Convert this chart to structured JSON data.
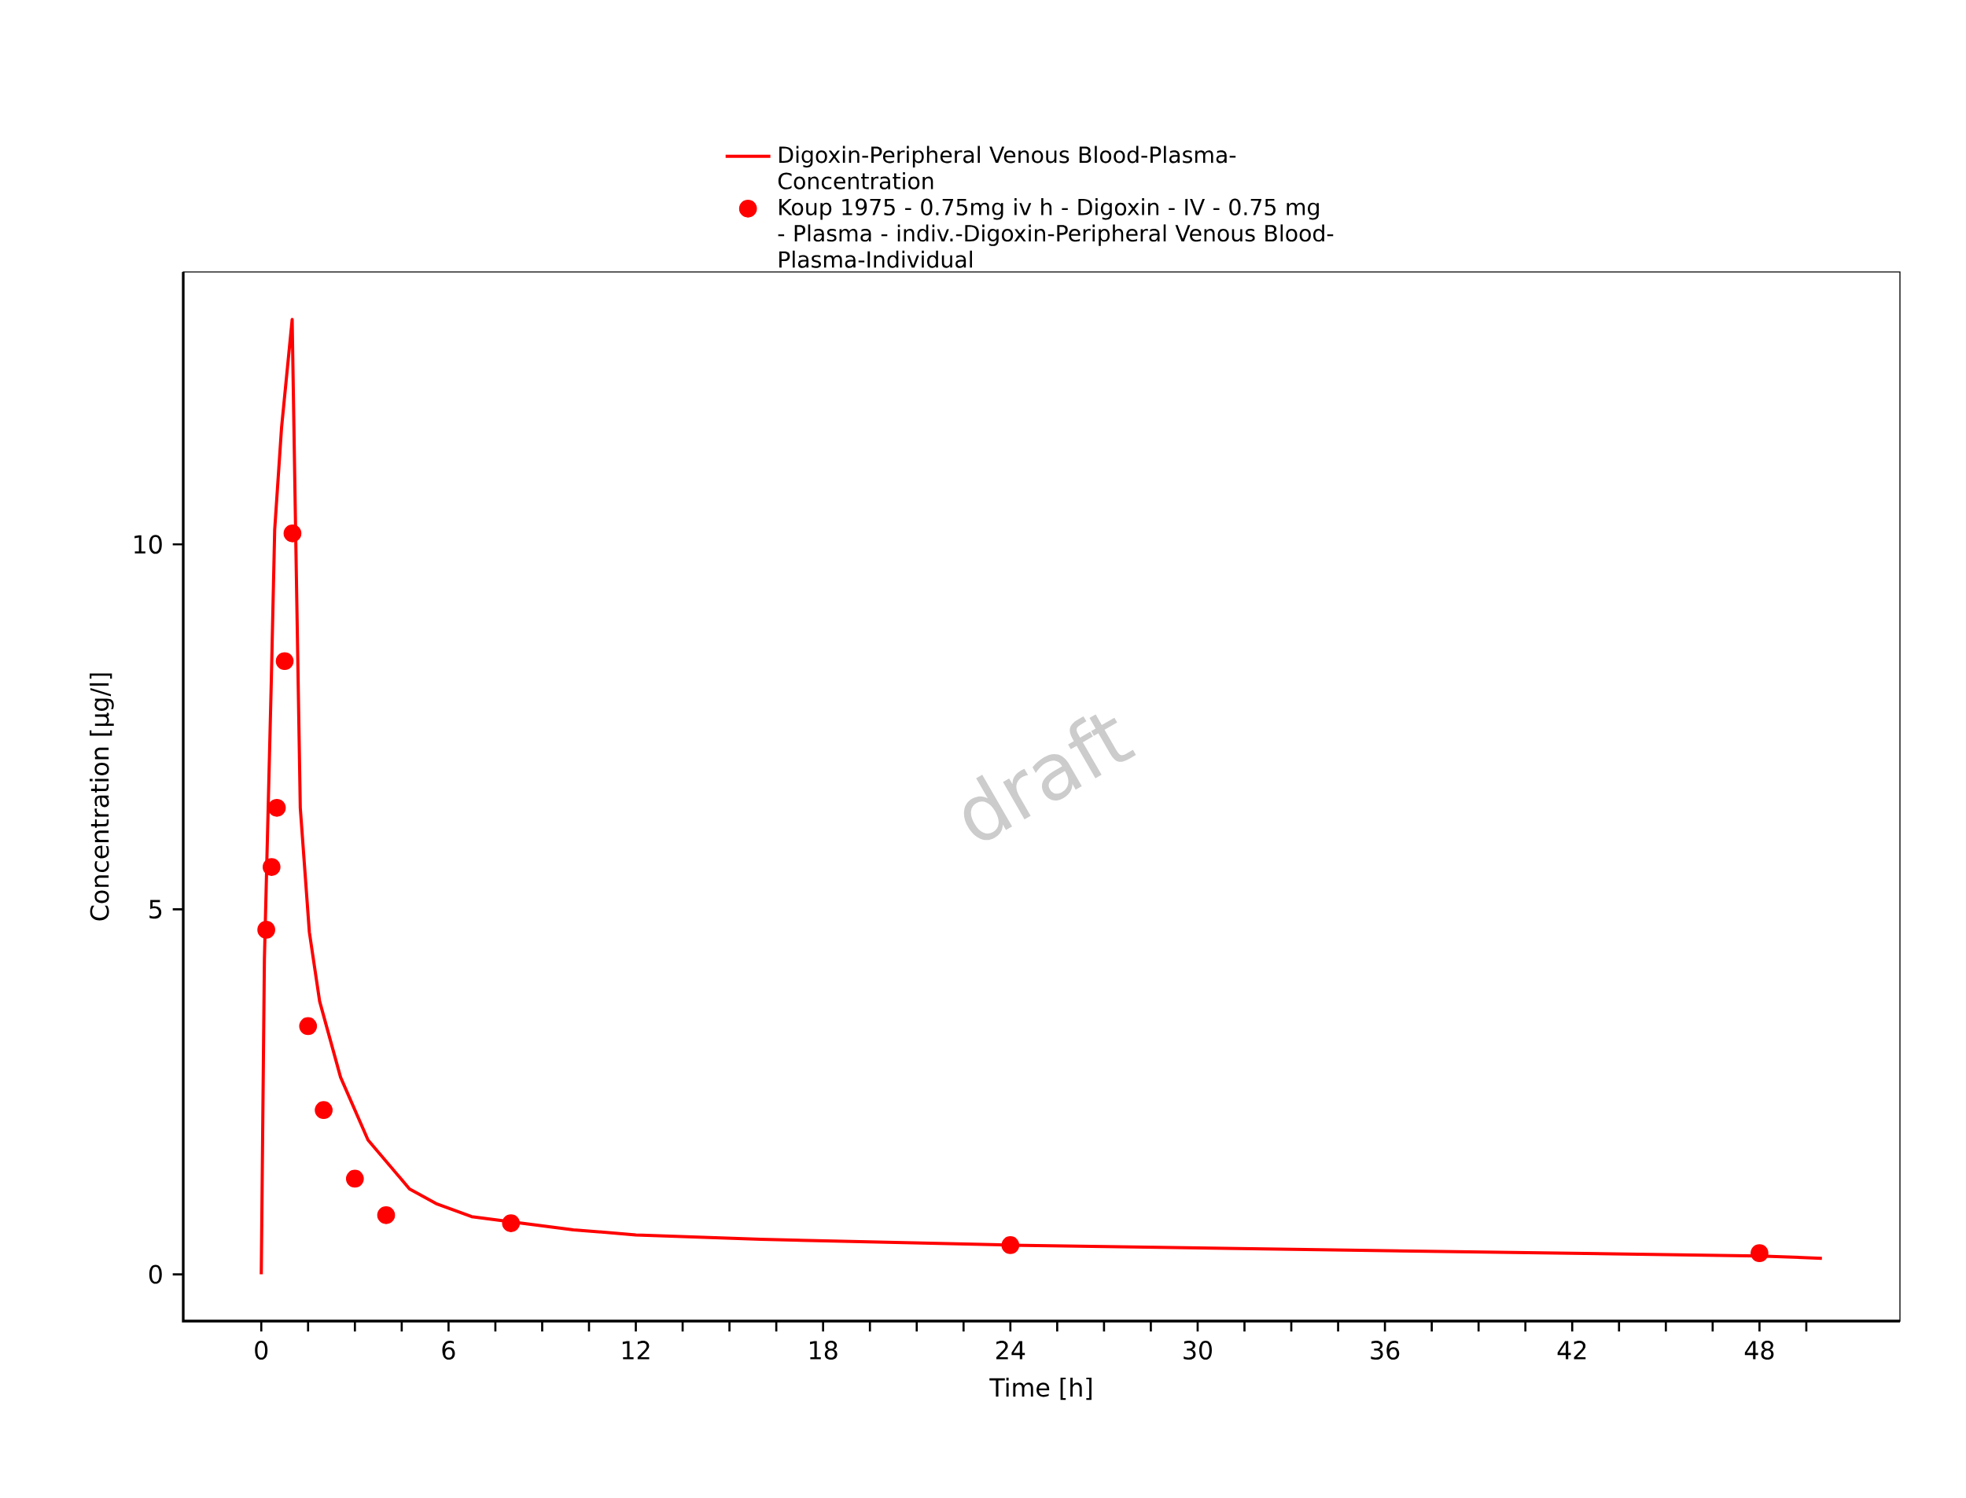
{
  "chart_data": {
    "type": "line",
    "xlabel": "Time [h]",
    "ylabel": "Concentration [µg/l]",
    "xlim": [
      -2.5,
      52.5
    ],
    "ylim": [
      -0.64,
      13.73
    ],
    "xticks": [
      0,
      {
        "value": 1.5,
        "label": null
      },
      {
        "value": 3,
        "label": null
      },
      {
        "value": 4.5,
        "label": null
      },
      6,
      {
        "value": 7.5,
        "label": null
      },
      {
        "value": 9,
        "label": null
      },
      {
        "value": 10.5,
        "label": null
      },
      12,
      {
        "value": 13.5,
        "label": null
      },
      {
        "value": 15,
        "label": null
      },
      {
        "value": 16.5,
        "label": null
      },
      18,
      {
        "value": 19.5,
        "label": null
      },
      {
        "value": 21,
        "label": null
      },
      {
        "value": 22.5,
        "label": null
      },
      24,
      {
        "value": 25.5,
        "label": null
      },
      {
        "value": 27,
        "label": null
      },
      {
        "value": 28.5,
        "label": null
      },
      30,
      {
        "value": 31.5,
        "label": null
      },
      {
        "value": 33,
        "label": null
      },
      {
        "value": 34.5,
        "label": null
      },
      36,
      {
        "value": 37.5,
        "label": null
      },
      {
        "value": 39,
        "label": null
      },
      {
        "value": 40.5,
        "label": null
      },
      42,
      {
        "value": 43.5,
        "label": null
      },
      {
        "value": 45,
        "label": null
      },
      {
        "value": 46.5,
        "label": null
      },
      48,
      {
        "value": 49.5,
        "label": null
      }
    ],
    "yticks": [
      0,
      5,
      10
    ],
    "grid": false,
    "legend": "top",
    "annotations": [
      "draft"
    ],
    "series": [
      {
        "name": "Digoxin-Peripheral Venous Blood-Plasma-Concentration",
        "color": "#ff0000",
        "marker": "none",
        "line_style": "solid",
        "x": [
          0,
          0.1,
          0.21,
          0.32,
          0.43,
          0.65,
          0.99,
          1.1,
          1.25,
          1.54,
          1.87,
          2.54,
          3.42,
          4.75,
          5.6,
          6.74,
          8,
          10,
          12,
          16,
          24,
          48,
          50
        ],
        "values": [
          0,
          4.31,
          6.2,
          8.1,
          10.2,
          11.6,
          13.08,
          10.2,
          6.39,
          4.69,
          3.74,
          2.7,
          1.84,
          1.17,
          0.97,
          0.79,
          0.72,
          0.61,
          0.54,
          0.48,
          0.4,
          0.25,
          0.22
        ]
      },
      {
        "name": "Koup 1975 - 0.75mg iv h - Digoxin - IV - 0.75 mg - Plasma - indiv.-Digoxin-Peripheral Venous Blood-Plasma-Individual",
        "type": "scatter",
        "color": "#ff0000",
        "marker": "circle",
        "x": [
          0.16,
          0.33,
          0.5,
          0.75,
          1.0,
          1.5,
          2,
          3,
          4,
          8,
          24,
          48
        ],
        "values": [
          4.72,
          5.58,
          6.39,
          8.4,
          10.15,
          3.4,
          2.25,
          1.31,
          0.81,
          0.7,
          0.4,
          0.29
        ]
      }
    ]
  }
}
